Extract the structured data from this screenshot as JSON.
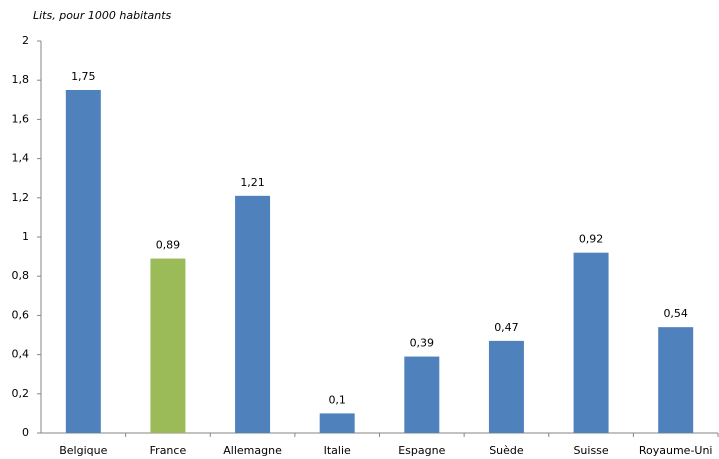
{
  "chart_data": {
    "type": "bar",
    "y_axis_label": "Lits, pour 1000 habitants",
    "categories": [
      "Belgique",
      "France",
      "Allemagne",
      "Italie",
      "Espagne",
      "Suède",
      "Suisse",
      "Royaume-Uni"
    ],
    "values": [
      1.75,
      0.89,
      1.21,
      0.1,
      0.39,
      0.47,
      0.92,
      0.54
    ],
    "value_labels": [
      "1,75",
      "0,89",
      "1,21",
      "0,1",
      "0,39",
      "0,47",
      "0,92",
      "0,54"
    ],
    "colors": [
      "#4f81bd",
      "#9bbb59",
      "#4f81bd",
      "#4f81bd",
      "#4f81bd",
      "#4f81bd",
      "#4f81bd",
      "#4f81bd"
    ],
    "ylim": [
      0,
      2
    ],
    "yticks": [
      0,
      {
        "value": 0.2,
        "label": "0,2"
      },
      {
        "value": 0.4,
        "label": "0,4"
      },
      {
        "value": 0.6,
        "label": "0,6"
      },
      {
        "value": 0.8,
        "label": "0,8"
      },
      1,
      {
        "value": 1.2,
        "label": "1,2"
      },
      {
        "value": 1.4,
        "label": "1,4"
      },
      {
        "value": 1.6,
        "label": "1,6"
      },
      {
        "value": 1.8,
        "label": "1,8"
      },
      2
    ],
    "grid": false
  }
}
